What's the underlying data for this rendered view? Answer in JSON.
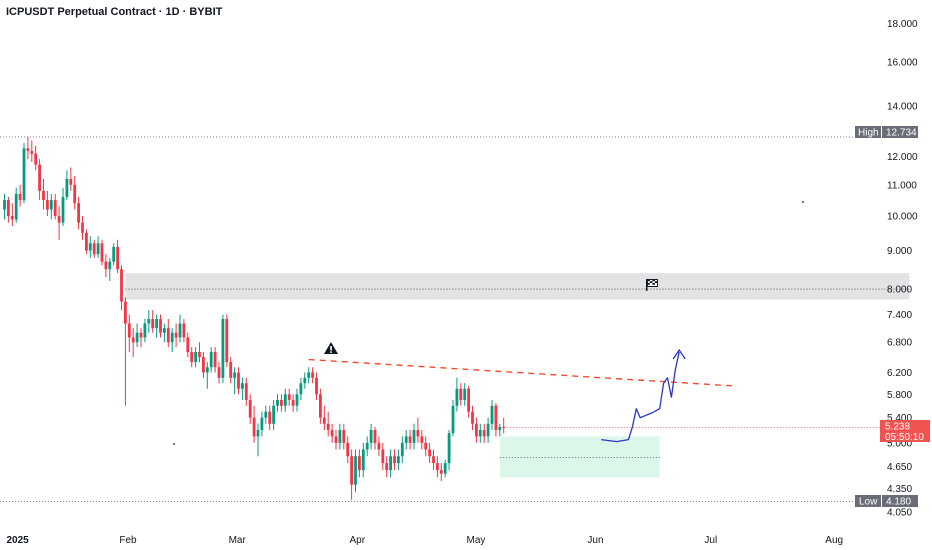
{
  "chart_data": {
    "type": "candlestick",
    "title": "ICPUSDT Perpetual Contract · 1D · BYBIT",
    "y_scale": "log",
    "y_range": [
      3.95,
      19.0
    ],
    "x_range_days": [
      0,
      231
    ],
    "x_ticks": [
      {
        "label": "2025",
        "day": 0
      },
      {
        "label": "Feb",
        "day": 31
      },
      {
        "label": "Mar",
        "day": 59
      },
      {
        "label": "Apr",
        "day": 90
      },
      {
        "label": "May",
        "day": 120
      },
      {
        "label": "Jun",
        "day": 151
      },
      {
        "label": "Jul",
        "day": 181
      },
      {
        "label": "Aug",
        "day": 212
      }
    ],
    "y_ticks": [
      "18.000",
      "16.000",
      "14.000",
      "13.000",
      "12.000",
      "11.000",
      "10.000",
      "9.000",
      "8.000",
      "7.400",
      "6.800",
      "6.200",
      "5.800",
      "5.400",
      "5.000",
      "4.650",
      "4.350",
      "4.050"
    ],
    "high": {
      "label": "High",
      "value": "12.734"
    },
    "low": {
      "label": "Low",
      "value": "4.180"
    },
    "last_price": {
      "value": "5.238",
      "countdown": "05:50:10"
    },
    "resistance_zone": {
      "top": 8.4,
      "bottom": 7.75,
      "mid": 8.0,
      "day_start": 31,
      "day_end": 232
    },
    "support_zone": {
      "top": 5.1,
      "bottom": 4.5,
      "mid": 4.78,
      "day_start": 127,
      "day_end": 168
    },
    "trendline": {
      "start": {
        "day": 78,
        "price": 6.45
      },
      "end": {
        "day": 187,
        "price": 5.95
      }
    },
    "projection": [
      {
        "day": 153,
        "price": 5.05
      },
      {
        "day": 157,
        "price": 5.02
      },
      {
        "day": 160,
        "price": 5.05
      },
      {
        "day": 161,
        "price": 5.25
      },
      {
        "day": 162,
        "price": 5.55
      },
      {
        "day": 163,
        "price": 5.4
      },
      {
        "day": 166,
        "price": 5.48
      },
      {
        "day": 168,
        "price": 5.55
      },
      {
        "day": 169,
        "price": 6.0
      },
      {
        "day": 170,
        "price": 6.1
      },
      {
        "day": 171,
        "price": 5.75
      },
      {
        "day": 172,
        "price": 6.25
      },
      {
        "day": 173,
        "price": 6.6
      }
    ],
    "candles": [
      [
        10.2,
        10.7,
        9.9,
        10.5
      ],
      [
        10.5,
        10.6,
        9.8,
        10.0
      ],
      [
        10.0,
        10.4,
        9.7,
        9.9
      ],
      [
        9.9,
        10.9,
        9.8,
        10.7
      ],
      [
        10.7,
        11.0,
        10.3,
        10.5
      ],
      [
        10.5,
        12.5,
        10.4,
        12.3
      ],
      [
        12.3,
        12.734,
        11.9,
        12.2
      ],
      [
        12.2,
        12.6,
        11.8,
        12.1
      ],
      [
        12.1,
        12.4,
        11.5,
        11.7
      ],
      [
        11.7,
        11.9,
        10.5,
        10.8
      ],
      [
        10.8,
        11.2,
        10.2,
        10.5
      ],
      [
        10.5,
        10.8,
        10.0,
        10.2
      ],
      [
        10.2,
        10.7,
        9.9,
        10.5
      ],
      [
        10.5,
        10.7,
        9.9,
        10.0
      ],
      [
        10.0,
        10.3,
        9.3,
        9.8
      ],
      [
        9.8,
        10.9,
        9.7,
        10.6
      ],
      [
        10.6,
        11.5,
        10.5,
        11.2
      ],
      [
        11.2,
        11.6,
        10.8,
        11.0
      ],
      [
        11.0,
        11.3,
        10.2,
        10.4
      ],
      [
        10.4,
        10.6,
        9.6,
        9.8
      ],
      [
        9.8,
        10.0,
        9.3,
        9.5
      ],
      [
        9.5,
        9.6,
        8.9,
        9.0
      ],
      [
        9.0,
        9.4,
        8.8,
        9.2
      ],
      [
        9.2,
        9.3,
        8.8,
        8.9
      ],
      [
        8.9,
        9.4,
        8.8,
        9.2
      ],
      [
        9.2,
        9.3,
        8.6,
        8.7
      ],
      [
        8.7,
        8.9,
        8.3,
        8.5
      ],
      [
        8.5,
        8.8,
        8.2,
        8.7
      ],
      [
        8.7,
        9.2,
        8.6,
        9.1
      ],
      [
        9.1,
        9.3,
        8.4,
        8.5
      ],
      [
        8.5,
        8.6,
        7.5,
        7.7
      ],
      [
        7.7,
        7.8,
        5.6,
        7.2
      ],
      [
        7.2,
        7.4,
        6.6,
        6.9
      ],
      [
        6.9,
        7.1,
        6.5,
        6.8
      ],
      [
        6.8,
        7.2,
        6.7,
        7.0
      ],
      [
        7.0,
        7.1,
        6.7,
        6.9
      ],
      [
        6.9,
        7.3,
        6.8,
        7.2
      ],
      [
        7.2,
        7.5,
        7.0,
        7.3
      ],
      [
        7.3,
        7.5,
        7.0,
        7.1
      ],
      [
        7.1,
        7.4,
        6.9,
        7.3
      ],
      [
        7.3,
        7.4,
        6.9,
        7.0
      ],
      [
        7.0,
        7.2,
        6.8,
        7.1
      ],
      [
        7.1,
        7.3,
        6.7,
        6.8
      ],
      [
        6.8,
        7.1,
        6.6,
        7.0
      ],
      [
        7.0,
        7.2,
        6.7,
        6.9
      ],
      [
        6.9,
        7.4,
        6.8,
        7.2
      ],
      [
        7.2,
        7.3,
        6.8,
        6.9
      ],
      [
        6.9,
        7.0,
        6.5,
        6.6
      ],
      [
        6.6,
        6.7,
        6.3,
        6.4
      ],
      [
        6.4,
        6.7,
        6.3,
        6.6
      ],
      [
        6.6,
        6.8,
        6.4,
        6.5
      ],
      [
        6.5,
        6.6,
        6.1,
        6.2
      ],
      [
        6.2,
        6.4,
        5.9,
        6.3
      ],
      [
        6.3,
        6.7,
        6.2,
        6.6
      ],
      [
        6.6,
        6.7,
        6.2,
        6.3
      ],
      [
        6.3,
        6.4,
        6.0,
        6.1
      ],
      [
        6.1,
        7.4,
        6.0,
        7.3
      ],
      [
        7.3,
        7.4,
        6.3,
        6.4
      ],
      [
        6.4,
        6.5,
        6.0,
        6.1
      ],
      [
        6.1,
        6.3,
        5.8,
        6.2
      ],
      [
        6.2,
        6.3,
        5.8,
        5.9
      ],
      [
        5.9,
        6.1,
        5.7,
        6.0
      ],
      [
        6.0,
        6.1,
        5.6,
        5.7
      ],
      [
        5.7,
        5.8,
        5.3,
        5.4
      ],
      [
        5.4,
        5.6,
        5.0,
        5.1
      ],
      [
        5.1,
        5.3,
        4.8,
        5.2
      ],
      [
        5.2,
        5.5,
        5.1,
        5.4
      ],
      [
        5.4,
        5.6,
        5.3,
        5.5
      ],
      [
        5.5,
        5.6,
        5.2,
        5.3
      ],
      [
        5.3,
        5.7,
        5.2,
        5.6
      ],
      [
        5.6,
        5.8,
        5.5,
        5.7
      ],
      [
        5.7,
        5.8,
        5.5,
        5.6
      ],
      [
        5.6,
        5.9,
        5.5,
        5.8
      ],
      [
        5.8,
        5.9,
        5.6,
        5.7
      ],
      [
        5.7,
        5.8,
        5.5,
        5.6
      ],
      [
        5.6,
        5.9,
        5.5,
        5.8
      ],
      [
        5.8,
        6.1,
        5.7,
        6.0
      ],
      [
        6.0,
        6.2,
        5.9,
        6.1
      ],
      [
        6.1,
        6.3,
        6.0,
        6.2
      ],
      [
        6.2,
        6.3,
        6.0,
        6.1
      ],
      [
        6.1,
        6.2,
        5.7,
        5.8
      ],
      [
        5.8,
        5.9,
        5.3,
        5.4
      ],
      [
        5.4,
        5.6,
        5.2,
        5.3
      ],
      [
        5.3,
        5.5,
        5.1,
        5.2
      ],
      [
        5.2,
        5.3,
        5.0,
        5.1
      ],
      [
        5.1,
        5.2,
        4.9,
        5.0
      ],
      [
        5.0,
        5.3,
        4.9,
        5.2
      ],
      [
        5.2,
        5.3,
        4.9,
        5.0
      ],
      [
        5.0,
        5.1,
        4.7,
        4.8
      ],
      [
        4.8,
        4.9,
        4.2,
        4.4
      ],
      [
        4.4,
        4.9,
        4.3,
        4.8
      ],
      [
        4.8,
        4.9,
        4.5,
        4.6
      ],
      [
        4.6,
        5.0,
        4.5,
        4.9
      ],
      [
        4.9,
        5.1,
        4.8,
        5.0
      ],
      [
        5.0,
        5.3,
        4.9,
        5.2
      ],
      [
        5.2,
        5.25,
        4.9,
        5.0
      ],
      [
        5.0,
        5.1,
        4.8,
        4.9
      ],
      [
        4.9,
        5.0,
        4.6,
        4.7
      ],
      [
        4.7,
        4.8,
        4.5,
        4.6
      ],
      [
        4.6,
        4.9,
        4.5,
        4.8
      ],
      [
        4.8,
        4.9,
        4.6,
        4.7
      ],
      [
        4.7,
        4.9,
        4.6,
        4.8
      ],
      [
        4.8,
        5.1,
        4.7,
        5.0
      ],
      [
        5.0,
        5.2,
        4.9,
        5.1
      ],
      [
        5.1,
        5.2,
        4.9,
        5.0
      ],
      [
        5.0,
        5.3,
        4.9,
        5.2
      ],
      [
        5.2,
        5.4,
        5.0,
        5.1
      ],
      [
        5.1,
        5.2,
        4.9,
        5.0
      ],
      [
        5.0,
        5.1,
        4.8,
        4.9
      ],
      [
        4.9,
        5.0,
        4.7,
        4.8
      ],
      [
        4.8,
        4.9,
        4.6,
        4.7
      ],
      [
        4.7,
        4.8,
        4.5,
        4.6
      ],
      [
        4.6,
        4.7,
        4.45,
        4.55
      ],
      [
        4.55,
        4.75,
        4.5,
        4.7
      ],
      [
        4.7,
        5.2,
        4.6,
        5.15
      ],
      [
        5.15,
        5.7,
        5.1,
        5.6
      ],
      [
        5.6,
        6.1,
        5.5,
        5.9
      ],
      [
        5.9,
        6.0,
        5.6,
        5.7
      ],
      [
        5.7,
        6.0,
        5.6,
        5.9
      ],
      [
        5.9,
        5.95,
        5.4,
        5.5
      ],
      [
        5.5,
        5.6,
        5.2,
        5.3
      ],
      [
        5.3,
        5.4,
        5.0,
        5.1
      ],
      [
        5.1,
        5.3,
        5.0,
        5.2
      ],
      [
        5.2,
        5.3,
        5.0,
        5.1
      ],
      [
        5.1,
        5.4,
        5.0,
        5.3
      ],
      [
        5.3,
        5.7,
        5.2,
        5.6
      ],
      [
        5.6,
        5.65,
        5.1,
        5.2
      ],
      [
        5.2,
        5.3,
        5.1,
        5.25
      ],
      [
        5.25,
        5.4,
        5.15,
        5.238
      ]
    ]
  }
}
